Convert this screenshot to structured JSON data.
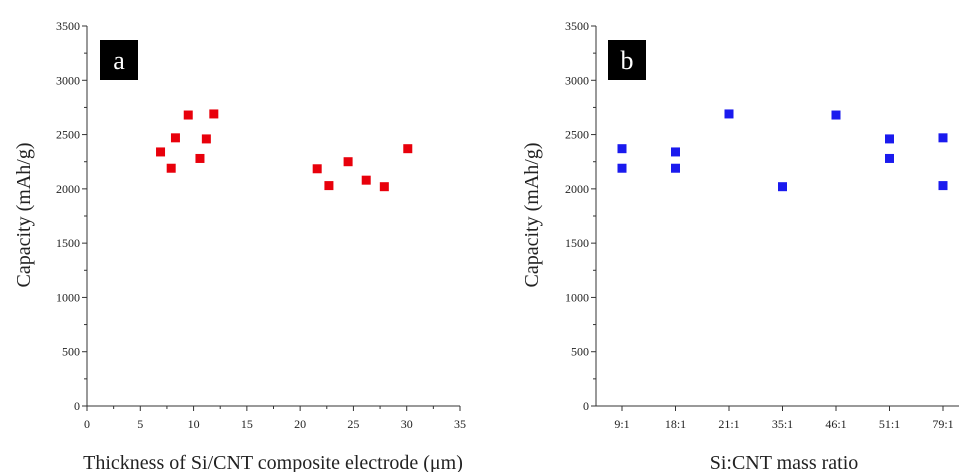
{
  "chart_data": [
    {
      "type": "scatter",
      "panel_label": "a",
      "xlabel": "Thickness of Si/CNT composite electrode (μm)",
      "ylabel": "Capacity (mAh/g)",
      "xlim": [
        0,
        35
      ],
      "ylim": [
        0,
        3500
      ],
      "x_ticks": [
        0,
        5,
        10,
        15,
        20,
        25,
        30,
        35
      ],
      "y_ticks": [
        0,
        500,
        1000,
        1500,
        2000,
        2500,
        3000,
        3500
      ],
      "marker_color": "#e8000b",
      "points": [
        {
          "x": 6.9,
          "y": 2340
        },
        {
          "x": 7.9,
          "y": 2190
        },
        {
          "x": 8.3,
          "y": 2470
        },
        {
          "x": 9.5,
          "y": 2680
        },
        {
          "x": 10.6,
          "y": 2280
        },
        {
          "x": 11.2,
          "y": 2460
        },
        {
          "x": 11.9,
          "y": 2690
        },
        {
          "x": 21.6,
          "y": 2185
        },
        {
          "x": 22.7,
          "y": 2030
        },
        {
          "x": 24.5,
          "y": 2250
        },
        {
          "x": 26.2,
          "y": 2080
        },
        {
          "x": 27.9,
          "y": 2020
        },
        {
          "x": 30.1,
          "y": 2370
        }
      ]
    },
    {
      "type": "scatter",
      "panel_label": "b",
      "xlabel": "Si:CNT mass ratio",
      "ylabel": "Capacity (mAh/g)",
      "ylim": [
        0,
        3500
      ],
      "categories": [
        "9:1",
        "18:1",
        "21:1",
        "35:1",
        "46:1",
        "51:1",
        "79:1"
      ],
      "y_ticks": [
        0,
        500,
        1000,
        1500,
        2000,
        2500,
        3000,
        3500
      ],
      "marker_color": "#1a1aee",
      "points": [
        {
          "x": "9:1",
          "y": 2370
        },
        {
          "x": "9:1",
          "y": 2190
        },
        {
          "x": "18:1",
          "y": 2340
        },
        {
          "x": "18:1",
          "y": 2190
        },
        {
          "x": "21:1",
          "y": 2690
        },
        {
          "x": "35:1",
          "y": 2020
        },
        {
          "x": "46:1",
          "y": 2680
        },
        {
          "x": "51:1",
          "y": 2460
        },
        {
          "x": "51:1",
          "y": 2280
        },
        {
          "x": "79:1",
          "y": 2470
        },
        {
          "x": "79:1",
          "y": 2030
        }
      ]
    }
  ]
}
